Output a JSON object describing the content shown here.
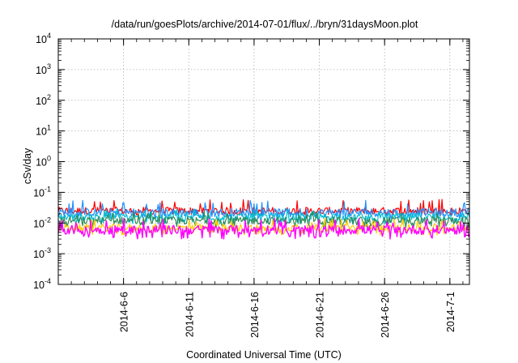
{
  "chart_data": {
    "type": "line",
    "title": "/data/run/goesPlots/archive/2014-07-01/flux/../bryn/31daysMoon.plot",
    "xlabel": "Coordinated Universal Time (UTC)",
    "ylabel": "cSv/day",
    "y_scale": "log",
    "ylim": [
      0.0001,
      10000
    ],
    "y_ticks": [
      {
        "base": "10",
        "exp": "-4"
      },
      {
        "base": "10",
        "exp": "-3"
      },
      {
        "base": "10",
        "exp": "-2"
      },
      {
        "base": "10",
        "exp": "-1"
      },
      {
        "base": "10",
        "exp": "0"
      },
      {
        "base": "10",
        "exp": "1"
      },
      {
        "base": "10",
        "exp": "2"
      },
      {
        "base": "10",
        "exp": "3"
      },
      {
        "base": "10",
        "exp": "4"
      }
    ],
    "xlim": [
      "2014-06-01",
      "2014-07-02T12:00"
    ],
    "x_ticks": [
      "2014-6-6",
      "2014-6-11",
      "2014-6-16",
      "2014-6-21",
      "2014-6-26",
      "2014-7-1"
    ],
    "x_tick_dates": [
      "2014-06-06",
      "2014-06-11",
      "2014-06-16",
      "2014-06-21",
      "2014-06-26",
      "2014-07-01"
    ],
    "grid": true,
    "series": [
      {
        "color": "#ff0000",
        "typical": 0.025,
        "low": 0.018,
        "high": 0.06
      },
      {
        "color": "#1e90ff",
        "typical": 0.022,
        "low": 0.014,
        "high": 0.055
      },
      {
        "color": "#00bcd4",
        "typical": 0.016,
        "low": 0.009,
        "high": 0.03
      },
      {
        "color": "#2e8b57",
        "typical": 0.012,
        "low": 0.007,
        "high": 0.025
      },
      {
        "color": "#ffcc00",
        "typical": 0.007,
        "low": 0.004,
        "high": 0.014
      },
      {
        "color": "#ff00ff",
        "typical": 0.006,
        "low": 0.003,
        "high": 0.014
      }
    ]
  }
}
